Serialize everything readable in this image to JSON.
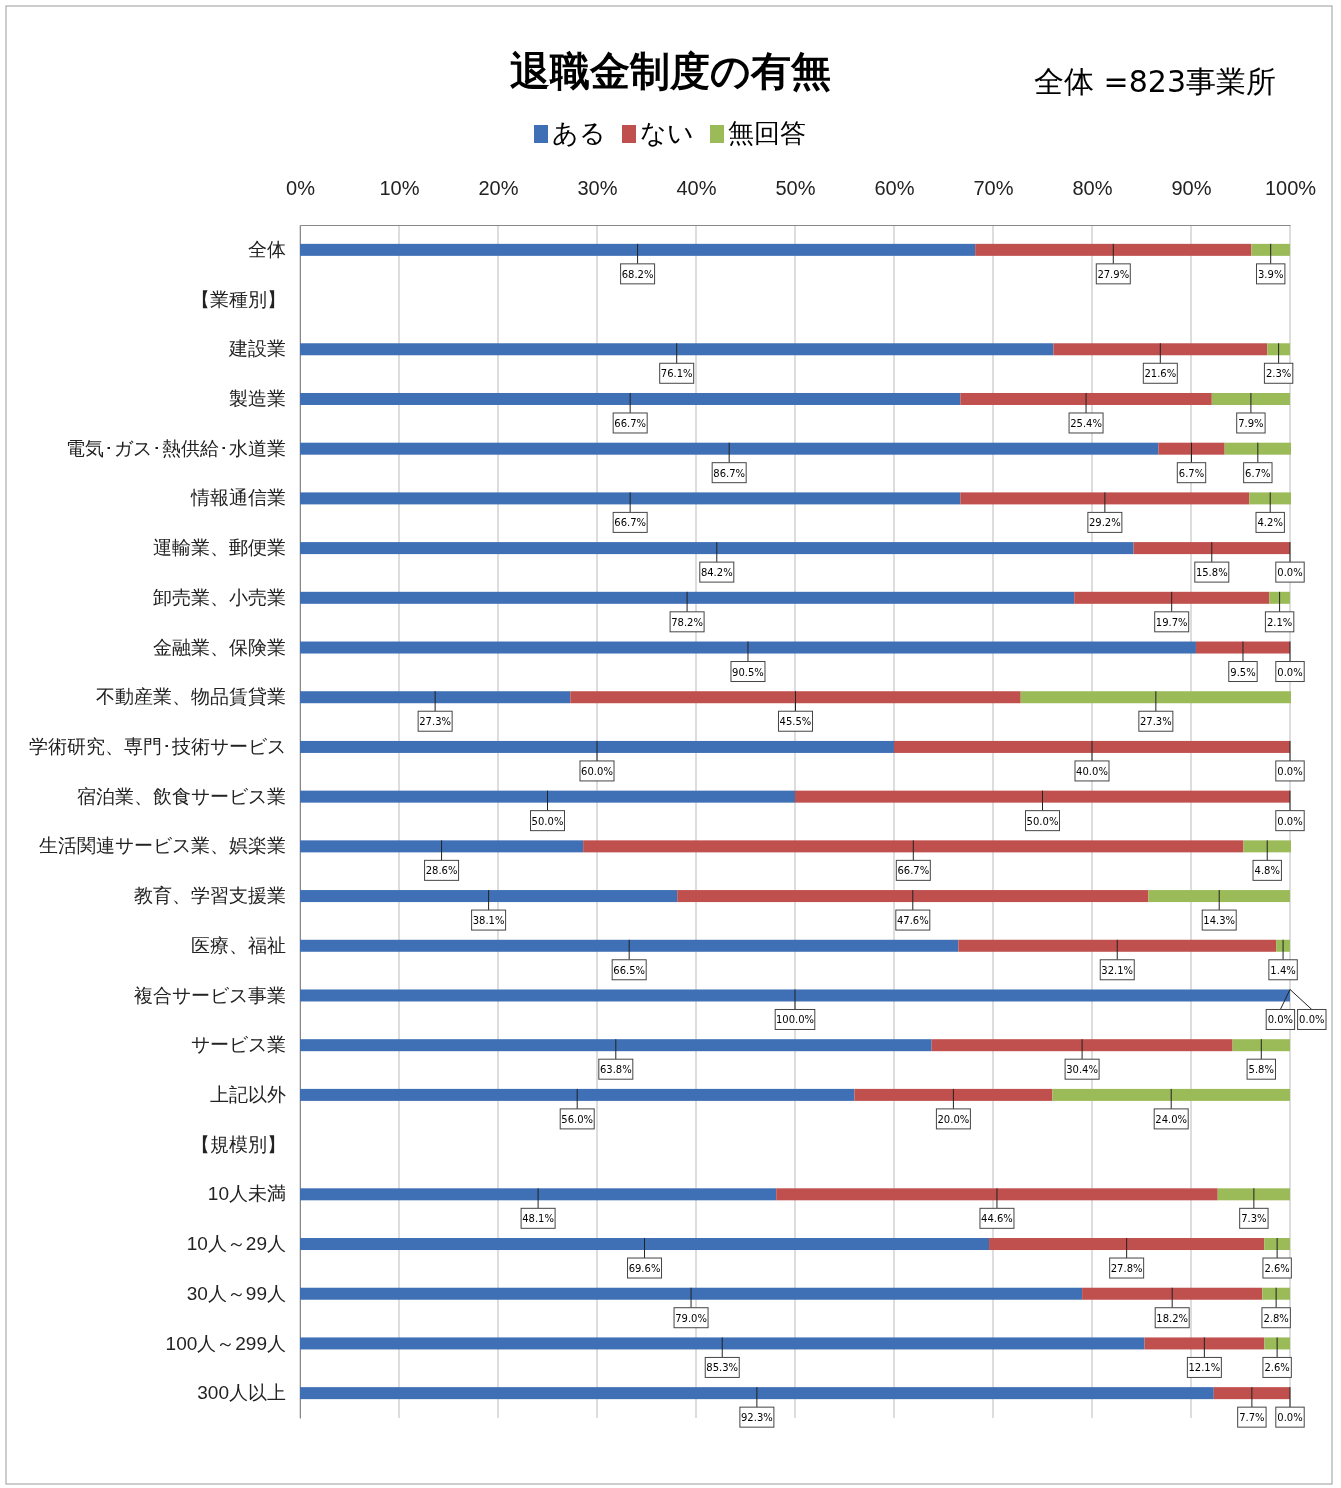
{
  "chart_data": {
    "type": "bar",
    "orientation": "horizontal",
    "stacked": true,
    "title": "退職金制度の有無",
    "annotations": [
      "全体 =823事業所"
    ],
    "categories": [
      "全体",
      "【業種別】",
      "建設業",
      "製造業",
      "電気･ガス･熱供給･水道業",
      "情報通信業",
      "運輸業、郵便業",
      "卸売業、小売業",
      "金融業、保険業",
      "不動産業、物品賃貸業",
      "学術研究、専門･技術サービス",
      "宿泊業、飲食サービス業",
      "生活関連サービス業、娯楽業",
      "教育、学習支援業",
      "医療、福祉",
      "複合サービス事業",
      "サービス業",
      "上記以外",
      "【規模別】",
      "10人未満",
      "10人～29人",
      "30人～99人",
      "100人～299人",
      "300人以上"
    ],
    "series": [
      {
        "name": "ある",
        "color": "#3f6fb5",
        "values": [
          68.2,
          null,
          76.1,
          66.7,
          86.7,
          66.7,
          84.2,
          78.2,
          90.5,
          27.3,
          60.0,
          50.0,
          28.6,
          38.1,
          66.5,
          100.0,
          63.8,
          56.0,
          null,
          48.1,
          69.6,
          79.0,
          85.3,
          92.3
        ],
        "value_labels": [
          "68.2%",
          null,
          "76.1%",
          "66.7%",
          "86.7%",
          "66.7%",
          "84.2%",
          "78.2%",
          "90.5%",
          "27.3%",
          "60.0%",
          "50.0%",
          "28.6%",
          "38.1%",
          "66.5%",
          "100.0%",
          "63.8%",
          "56.0%",
          null,
          "48.1%",
          "69.6%",
          "79.0%",
          "85.3%",
          "92.3%"
        ]
      },
      {
        "name": "ない",
        "color": "#c0504d",
        "values": [
          27.9,
          null,
          21.6,
          25.4,
          6.7,
          29.2,
          15.8,
          19.7,
          9.5,
          45.5,
          40.0,
          50.0,
          66.7,
          47.6,
          32.1,
          0.0,
          30.4,
          20.0,
          null,
          44.6,
          27.8,
          18.2,
          12.1,
          7.7
        ],
        "value_labels": [
          "27.9%",
          null,
          "21.6%",
          "25.4%",
          "6.7%",
          "29.2%",
          "15.8%",
          "19.7%",
          "9.5%",
          "45.5%",
          "40.0%",
          "50.0%",
          "66.7%",
          "47.6%",
          "32.1%",
          "0.0%",
          "30.4%",
          "20.0%",
          null,
          "44.6%",
          "27.8%",
          "18.2%",
          "12.1%",
          "7.7%"
        ]
      },
      {
        "name": "無回答",
        "color": "#9bbb59",
        "values": [
          3.9,
          null,
          2.3,
          7.9,
          6.7,
          4.2,
          0.0,
          2.1,
          0.0,
          27.3,
          0.0,
          0.0,
          4.8,
          14.3,
          1.4,
          0.0,
          5.8,
          24.0,
          null,
          7.3,
          2.6,
          2.8,
          2.6,
          0.0
        ],
        "value_labels": [
          "3.9%",
          null,
          "2.3%",
          "7.9%",
          "6.7%",
          "4.2%",
          "0.0%",
          "2.1%",
          "0.0%",
          "27.3%",
          "0.0%",
          "0.0%",
          "4.8%",
          "14.3%",
          "1.4%",
          "0.0%",
          "5.8%",
          "24.0%",
          null,
          "7.3%",
          "2.6%",
          "2.8%",
          "2.6%",
          "0.0%"
        ]
      }
    ],
    "xlim": [
      0,
      100
    ],
    "xticks": [
      {
        "value": 0,
        "label": "0%"
      },
      {
        "value": 10,
        "label": "10%"
      },
      {
        "value": 20,
        "label": "20%"
      },
      {
        "value": 30,
        "label": "30%"
      },
      {
        "value": 40,
        "label": "40%"
      },
      {
        "value": 50,
        "label": "50%"
      },
      {
        "value": 60,
        "label": "60%"
      },
      {
        "value": 70,
        "label": "70%"
      },
      {
        "value": 80,
        "label": "80%"
      },
      {
        "value": 90,
        "label": "90%"
      },
      {
        "value": 100,
        "label": "100%"
      }
    ],
    "grid": "x",
    "legend": "top"
  }
}
